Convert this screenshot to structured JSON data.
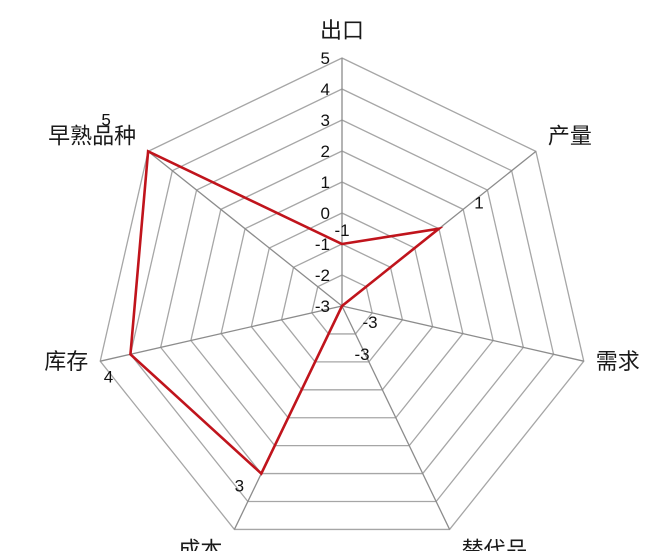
{
  "chart_data": {
    "type": "radar",
    "categories": [
      "出口",
      "产量",
      "需求",
      "替代品",
      "成本",
      "库存",
      "早熟品种"
    ],
    "series": [
      {
        "values": [
          -1,
          1,
          -3,
          -3,
          3,
          4,
          5
        ],
        "color": "#c0141c"
      }
    ],
    "rlim": [
      -3,
      5
    ],
    "ticks": [
      "-3",
      "-2",
      "-1",
      "0",
      "1",
      "2",
      "3",
      "4",
      "5"
    ],
    "data_labels": [
      "-1",
      "1",
      "-3",
      "-3",
      "3",
      "4",
      "5"
    ],
    "grid": true,
    "grid_color": "#a6a6a6",
    "axis_color": "#8c8c8c",
    "legend": "none"
  }
}
